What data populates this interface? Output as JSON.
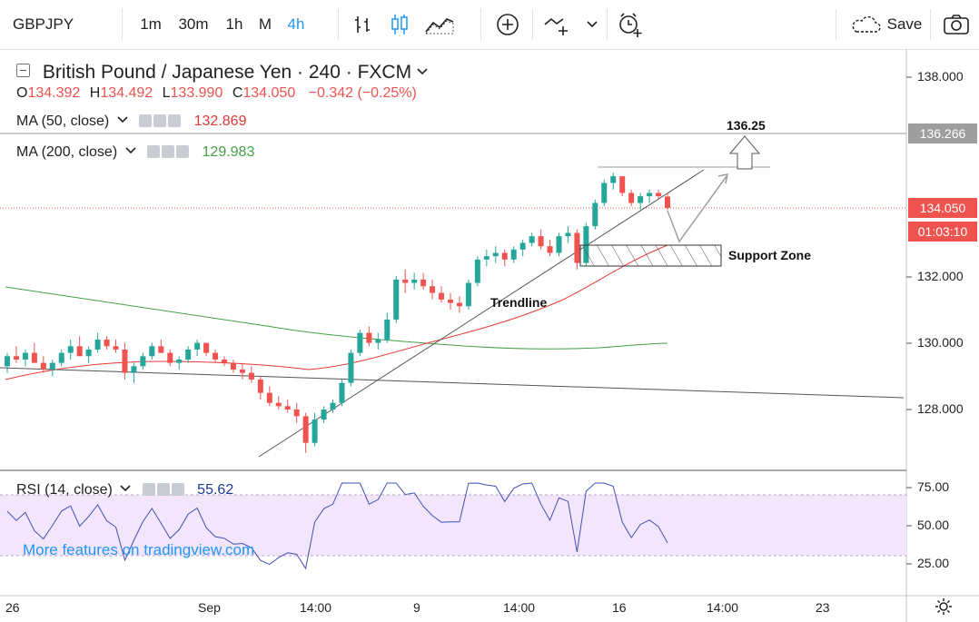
{
  "toolbar": {
    "symbol": "GBPJPY",
    "intervals": [
      "1m",
      "30m",
      "1h",
      "M",
      "4h"
    ],
    "active_interval": "4h",
    "save_label": "Save"
  },
  "legend": {
    "title": "British Pound / Japanese Yen · 240 · FXCM",
    "ohlc": {
      "o_label": "O",
      "o": "134.392",
      "h_label": "H",
      "h": "134.492",
      "l_label": "L",
      "l": "133.990",
      "c_label": "C",
      "c": "134.050",
      "change": "−0.342 (−0.25%)"
    },
    "ma50": {
      "label": "MA (50, close)",
      "value": "132.869",
      "color": "#e53935"
    },
    "ma200": {
      "label": "MA (200, close)",
      "value": "129.983",
      "color": "#43a047"
    }
  },
  "price_axis": {
    "ticks": [
      "138.000",
      "132.000",
      "130.000",
      "128.000"
    ],
    "marker_level": "136.266",
    "last_price": "134.050",
    "countdown": "01:03:10"
  },
  "annotations": {
    "target": "136.25",
    "trendline": "Trendline",
    "support_zone": "Support Zone"
  },
  "rsi": {
    "label": "RSI (14, close)",
    "value": "55.62",
    "ticks": [
      "75.00",
      "50.00",
      "25.00"
    ],
    "color": "#3f51b5"
  },
  "watermark": "More features on tradingview.com",
  "time_axis": [
    "26",
    "Sep",
    "14:00",
    "9",
    "14:00",
    "16",
    "14:00",
    "23"
  ],
  "colors": {
    "up": "#26a69a",
    "down": "#ef5350",
    "accent": "#2196f3"
  },
  "chart_data": {
    "type": "candlestick",
    "title": "British Pound / Japanese Yen · 240 · FXCM",
    "ylim": [
      126.5,
      138.5
    ],
    "candles": [
      [
        129.3,
        129.7,
        129.1,
        129.6
      ],
      [
        129.6,
        129.9,
        129.4,
        129.5
      ],
      [
        129.5,
        129.8,
        129.3,
        129.7
      ],
      [
        129.7,
        130.0,
        129.5,
        129.4
      ],
      [
        129.4,
        129.6,
        129.1,
        129.2
      ],
      [
        129.2,
        129.5,
        129.0,
        129.4
      ],
      [
        129.4,
        129.8,
        129.3,
        129.7
      ],
      [
        129.7,
        130.1,
        129.5,
        129.9
      ],
      [
        129.9,
        130.2,
        129.7,
        129.6
      ],
      [
        129.6,
        129.9,
        129.4,
        129.8
      ],
      [
        129.8,
        130.3,
        129.7,
        130.1
      ],
      [
        130.1,
        130.2,
        129.8,
        129.9
      ],
      [
        129.9,
        130.1,
        129.7,
        129.8
      ],
      [
        129.8,
        130.0,
        128.9,
        129.1
      ],
      [
        129.1,
        129.4,
        128.8,
        129.3
      ],
      [
        129.3,
        129.7,
        129.2,
        129.6
      ],
      [
        129.6,
        130.0,
        129.5,
        129.9
      ],
      [
        129.9,
        130.1,
        129.7,
        129.7
      ],
      [
        129.7,
        129.8,
        129.3,
        129.4
      ],
      [
        129.4,
        129.6,
        129.2,
        129.5
      ],
      [
        129.5,
        129.9,
        129.4,
        129.8
      ],
      [
        129.8,
        130.1,
        129.6,
        130.0
      ],
      [
        130.0,
        130.0,
        129.6,
        129.7
      ],
      [
        129.7,
        129.8,
        129.4,
        129.5
      ],
      [
        129.5,
        129.6,
        129.3,
        129.4
      ],
      [
        129.4,
        129.5,
        129.1,
        129.2
      ],
      [
        129.2,
        129.4,
        128.9,
        129.1
      ],
      [
        129.1,
        129.3,
        128.8,
        128.9
      ],
      [
        128.9,
        129.0,
        128.3,
        128.5
      ],
      [
        128.5,
        128.7,
        128.1,
        128.2
      ],
      [
        128.2,
        128.4,
        128.0,
        128.1
      ],
      [
        128.1,
        128.3,
        127.9,
        128.0
      ],
      [
        128.0,
        128.2,
        127.6,
        127.8
      ],
      [
        127.8,
        127.9,
        126.7,
        127.0
      ],
      [
        127.0,
        127.9,
        126.9,
        127.7
      ],
      [
        127.7,
        128.1,
        127.6,
        128.0
      ],
      [
        128.0,
        128.3,
        127.9,
        128.2
      ],
      [
        128.2,
        128.9,
        128.1,
        128.8
      ],
      [
        128.8,
        129.8,
        128.7,
        129.7
      ],
      [
        129.7,
        130.4,
        129.6,
        130.3
      ],
      [
        130.3,
        130.5,
        129.9,
        130.0
      ],
      [
        130.0,
        130.3,
        129.8,
        130.1
      ],
      [
        130.1,
        130.9,
        130.0,
        130.7
      ],
      [
        130.7,
        132.0,
        130.6,
        131.9
      ],
      [
        131.9,
        132.2,
        131.5,
        131.8
      ],
      [
        131.8,
        132.1,
        131.6,
        131.9
      ],
      [
        131.9,
        132.1,
        131.6,
        131.7
      ],
      [
        131.7,
        131.9,
        131.3,
        131.5
      ],
      [
        131.5,
        131.7,
        131.2,
        131.3
      ],
      [
        131.3,
        131.5,
        131.0,
        131.2
      ],
      [
        131.2,
        131.4,
        130.9,
        131.1
      ],
      [
        131.1,
        131.9,
        131.0,
        131.8
      ],
      [
        131.8,
        132.6,
        131.7,
        132.5
      ],
      [
        132.5,
        132.8,
        132.3,
        132.6
      ],
      [
        132.6,
        132.9,
        132.4,
        132.7
      ],
      [
        132.7,
        132.8,
        132.3,
        132.5
      ],
      [
        132.5,
        132.9,
        132.4,
        132.8
      ],
      [
        132.8,
        133.1,
        132.6,
        133.0
      ],
      [
        133.0,
        133.3,
        132.9,
        133.2
      ],
      [
        133.2,
        133.4,
        132.8,
        132.9
      ],
      [
        132.9,
        133.1,
        132.6,
        132.7
      ],
      [
        132.7,
        133.3,
        132.6,
        133.2
      ],
      [
        133.2,
        133.5,
        133.0,
        133.3
      ],
      [
        133.3,
        133.4,
        132.2,
        132.4
      ],
      [
        132.4,
        133.6,
        132.3,
        133.5
      ],
      [
        133.5,
        134.3,
        133.4,
        134.2
      ],
      [
        134.2,
        134.9,
        134.1,
        134.8
      ],
      [
        134.8,
        135.1,
        134.6,
        135.0
      ],
      [
        135.0,
        135.0,
        134.4,
        134.5
      ],
      [
        134.5,
        134.6,
        134.1,
        134.2
      ],
      [
        134.2,
        134.5,
        134.0,
        134.4
      ],
      [
        134.4,
        134.6,
        134.2,
        134.5
      ],
      [
        134.5,
        134.6,
        134.3,
        134.4
      ],
      [
        134.392,
        134.492,
        133.99,
        134.05
      ]
    ]
  }
}
